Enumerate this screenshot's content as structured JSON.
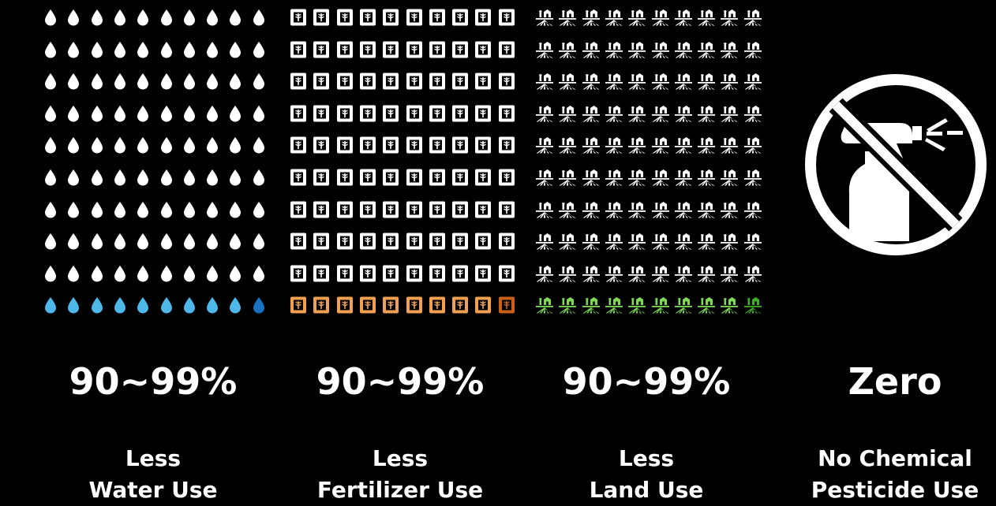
{
  "panels": [
    {
      "icon": "water-drop-icon",
      "value": "90~99%",
      "caption_line1": "Less",
      "caption_line2": "Water Use",
      "grid": {
        "rows": 10,
        "cols": 10,
        "highlighted_row": 10
      },
      "colors": {
        "base": "#ffffff",
        "highlight": "#4fb8ea",
        "accent": "#1a73c0"
      }
    },
    {
      "icon": "fertilizer-bag-icon",
      "value": "90~99%",
      "caption_line1": "Less",
      "caption_line2": "Fertilizer Use",
      "grid": {
        "rows": 10,
        "cols": 10,
        "highlighted_row": 10
      },
      "colors": {
        "base": "#ffffff",
        "highlight": "#f0a050",
        "accent": "#c8601a"
      }
    },
    {
      "icon": "farm-field-icon",
      "value": "90~99%",
      "caption_line1": "Less",
      "caption_line2": "Land Use",
      "grid": {
        "rows": 10,
        "cols": 10,
        "highlighted_row": 10
      },
      "colors": {
        "base": "#ffffff",
        "highlight": "#7ed957",
        "accent": "#3fae2a"
      }
    },
    {
      "icon": "no-pesticide-spray-icon",
      "value": "Zero",
      "caption_line1": "No Chemical",
      "caption_line2": "Pesticide Use"
    }
  ]
}
